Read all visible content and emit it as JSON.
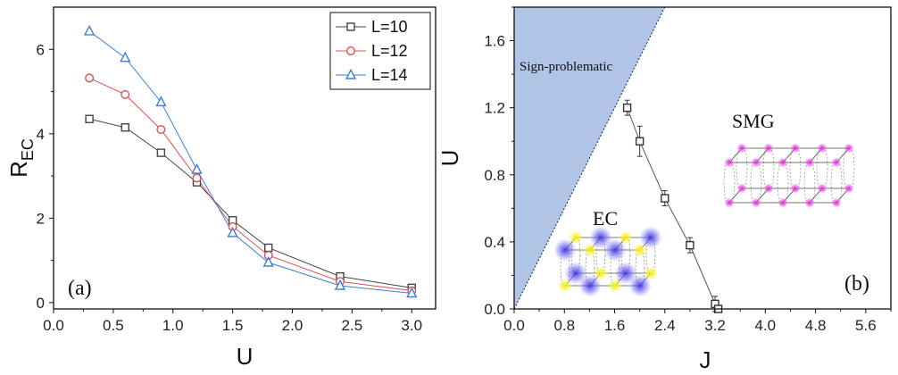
{
  "chart_data": [
    {
      "type": "line",
      "panel_label": "(a)",
      "xlabel": "U",
      "ylabel_main": "R",
      "ylabel_sub": "EC",
      "xlim": [
        0.0,
        3.2
      ],
      "ylim": [
        -0.15,
        7.0
      ],
      "xticks": [
        "0.0",
        "0.5",
        "1.0",
        "1.5",
        "2.0",
        "2.5",
        "3.0"
      ],
      "yticks": [
        "0",
        "2",
        "4",
        "6"
      ],
      "legend_position": "top-right",
      "grid": false,
      "x": [
        0.3,
        0.6,
        0.9,
        1.2,
        1.5,
        1.8,
        2.4,
        3.0
      ],
      "series": [
        {
          "name": "L=10",
          "marker": "square",
          "color": "#444444",
          "values": [
            4.35,
            4.15,
            3.55,
            2.85,
            1.95,
            1.3,
            0.62,
            0.35
          ]
        },
        {
          "name": "L=12",
          "marker": "circle",
          "color": "#e05050",
          "values": [
            5.32,
            4.93,
            4.1,
            2.95,
            1.8,
            1.12,
            0.5,
            0.28
          ]
        },
        {
          "name": "L=14",
          "marker": "triangle",
          "color": "#3a80d8",
          "values": [
            6.43,
            5.8,
            4.75,
            3.15,
            1.65,
            0.95,
            0.4,
            0.22
          ]
        }
      ]
    },
    {
      "type": "scatter",
      "panel_label": "(b)",
      "xlabel": "J",
      "ylabel": "U",
      "xlim": [
        0.0,
        6.0
      ],
      "ylim": [
        0.0,
        1.8
      ],
      "xticks": [
        "0.0",
        "0.8",
        "1.6",
        "2.4",
        "3.2",
        "4.0",
        "4.8",
        "5.6"
      ],
      "yticks": [
        "0.0",
        "0.4",
        "0.8",
        "1.2",
        "1.6"
      ],
      "region_label": "Sign-problematic",
      "region_color": "#b0c4e6",
      "region_boundary": [
        [
          0.0,
          0.0
        ],
        [
          2.4,
          1.8
        ]
      ],
      "phase_labels": [
        "EC",
        "SMG"
      ],
      "grid": false,
      "points": {
        "x": [
          1.8,
          2.0,
          2.4,
          2.8,
          3.2,
          3.25
        ],
        "y": [
          1.2,
          1.0,
          0.66,
          0.38,
          0.03,
          0.0
        ],
        "err": [
          0.045,
          0.09,
          0.045,
          0.045,
          0.045,
          0.0
        ]
      }
    }
  ]
}
